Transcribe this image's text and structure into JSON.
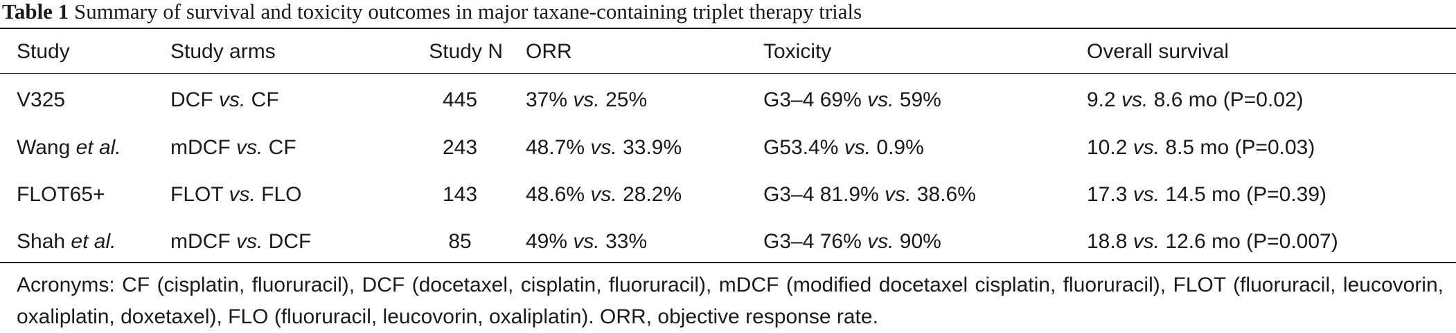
{
  "caption": {
    "label": "Table 1",
    "text": "Summary of survival and toxicity outcomes in major taxane-containing triplet therapy trials"
  },
  "headers": [
    "Study",
    "Study arms",
    "Study N",
    "ORR",
    "Toxicity",
    "Overall survival"
  ],
  "rows": [
    {
      "study": [
        "V325",
        "",
        ""
      ],
      "arms": [
        "DCF ",
        "vs.",
        " CF"
      ],
      "n": "445",
      "orr": [
        "37% ",
        "vs.",
        " 25%"
      ],
      "toxicity": [
        "G3–4 69% ",
        "vs.",
        " 59%"
      ],
      "os": [
        "9.2 ",
        "vs.",
        " 8.6 mo (P=0.02)"
      ]
    },
    {
      "study": [
        "Wang ",
        "et al.",
        ""
      ],
      "arms": [
        "mDCF ",
        "vs.",
        " CF"
      ],
      "n": "243",
      "orr": [
        "48.7% ",
        "vs.",
        " 33.9%"
      ],
      "toxicity": [
        "G53.4% ",
        "vs.",
        " 0.9%"
      ],
      "os": [
        "10.2 ",
        "vs.",
        " 8.5 mo (P=0.03)"
      ]
    },
    {
      "study": [
        "FLOT65+",
        "",
        ""
      ],
      "arms": [
        "FLOT ",
        "vs.",
        " FLO"
      ],
      "n": "143",
      "orr": [
        "48.6% ",
        "vs.",
        " 28.2%"
      ],
      "toxicity": [
        "G3–4 81.9% ",
        "vs.",
        " 38.6%"
      ],
      "os": [
        "17.3 ",
        "vs.",
        " 14.5 mo (P=0.39)"
      ]
    },
    {
      "study": [
        "Shah ",
        "et al.",
        ""
      ],
      "arms": [
        "mDCF ",
        "vs.",
        " DCF"
      ],
      "n": "85",
      "orr": [
        "49% ",
        "vs.",
        " 33%"
      ],
      "toxicity": [
        "G3–4 76% ",
        "vs.",
        " 90%"
      ],
      "os": [
        "18.8 ",
        "vs.",
        " 12.6 mo (P=0.007)"
      ]
    }
  ],
  "footnote": "Acronyms: CF (cisplatin, fluoruracil), DCF (docetaxel, cisplatin, fluoruracil), mDCF (modified docetaxel cisplatin, fluoruracil), FLOT (fluoruracil, leucovorin, oxaliplatin, doxetaxel), FLO (fluoruracil, leucovorin, oxaliplatin). ORR, objective response rate."
}
